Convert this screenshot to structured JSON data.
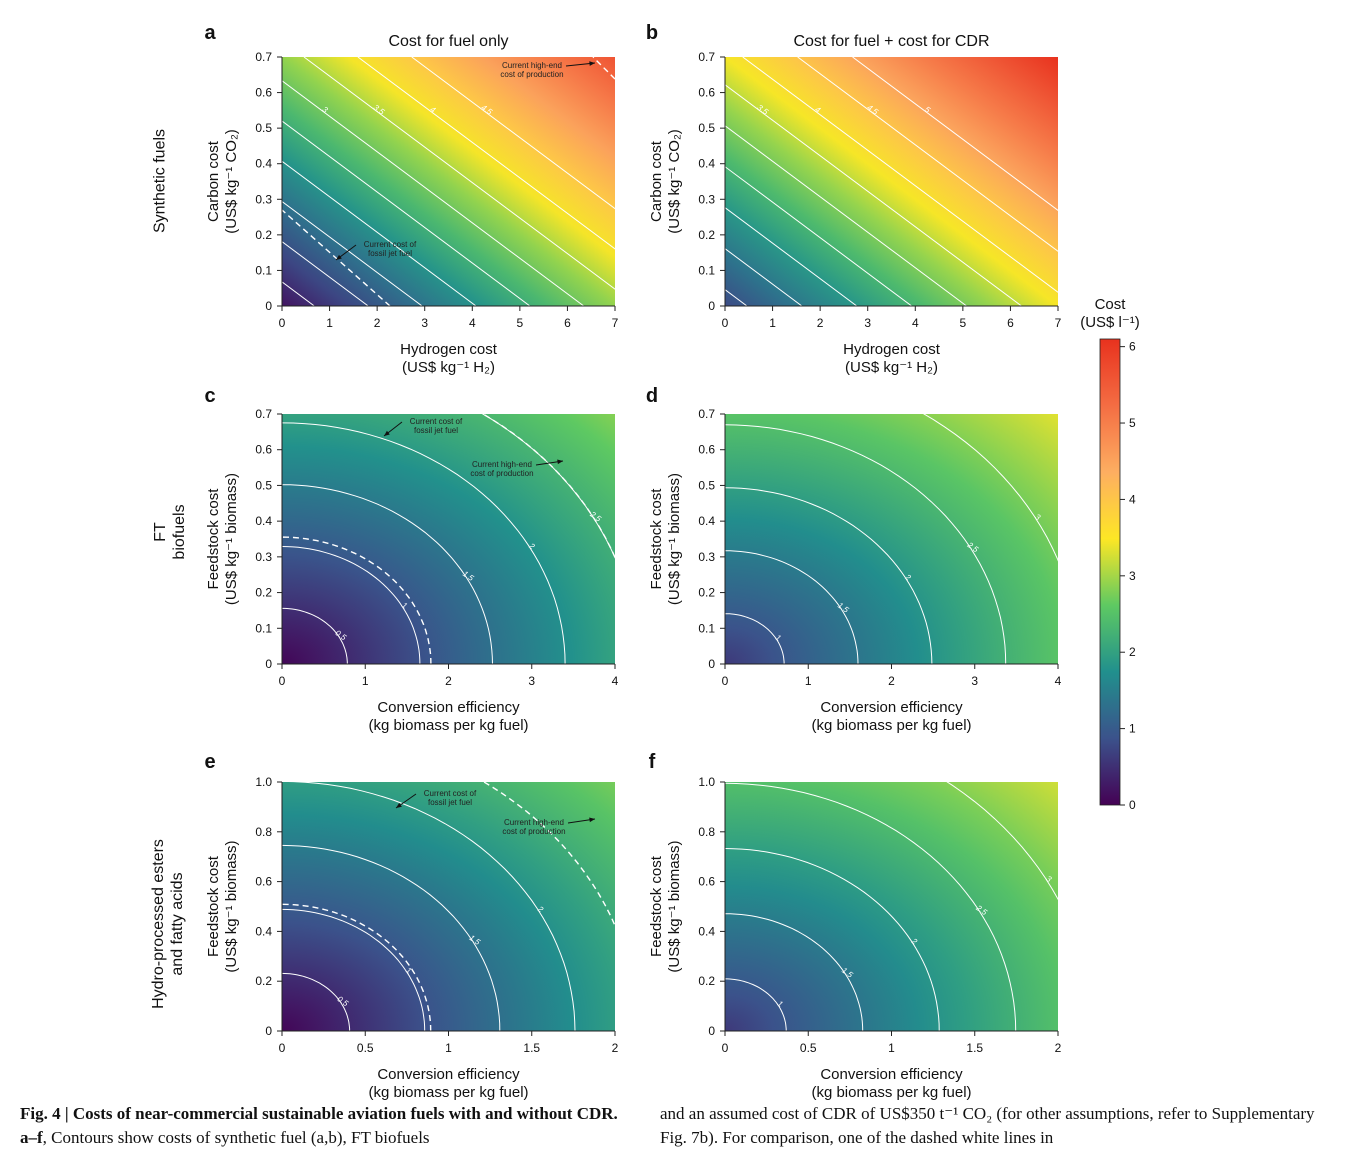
{
  "figure": {
    "row_labels": [
      [
        "Synthetic fuels"
      ],
      [
        "FT",
        "biofuels"
      ],
      [
        "Hydro-processed esters",
        "and fatty acids"
      ]
    ],
    "colorbar": {
      "title": "Cost",
      "unit": "(US$ l⁻¹)",
      "ticks": [
        "0",
        "1",
        "2",
        "3",
        "4",
        "5",
        "6"
      ],
      "colors": [
        "#440154",
        "#3b528b",
        "#21908d",
        "#5ec962",
        "#fde725",
        "#fdae61",
        "#f46d43",
        "#e8321e"
      ]
    },
    "caption": {
      "left_bold": "Fig. 4 | Costs of near-commercial sustainable aviation fuels with and without CDR. a–f",
      "left_rest": ", Contours show costs of synthetic fuel (a,b), FT biofuels",
      "right": "and an assumed cost of CDR of US$350 t⁻¹ CO₂ (for other assumptions, refer to Supplementary Fig. 7b). For comparison, one of the dashed white lines in"
    }
  },
  "chart_data": [
    {
      "panel": "a",
      "type": "heatmap",
      "title": "Cost for fuel only",
      "xlabel": [
        "Hydrogen cost",
        "(US$ kg⁻¹ H₂)"
      ],
      "ylabel": [
        "Carbon cost",
        "(US$ kg⁻¹ CO₂)"
      ],
      "xlim": [
        0,
        7
      ],
      "ylim": [
        0,
        0.7
      ],
      "xticks": [
        "0",
        "1",
        "2",
        "3",
        "4",
        "5",
        "6",
        "7"
      ],
      "yticks": [
        "0",
        "0.1",
        "0.2",
        "0.3",
        "0.4",
        "0.5",
        "0.6",
        "0.7"
      ],
      "cost_range": [
        0.2,
        5.6
      ],
      "contour_levels": [
        "0.5",
        "1",
        "1.5",
        "2",
        "2.5",
        "3",
        "3.5",
        "4",
        "4.5"
      ],
      "annotations": [
        {
          "text": [
            "Current high-end",
            "cost of production"
          ]
        },
        {
          "text": [
            "Current cost of",
            "fossil jet fuel"
          ]
        }
      ]
    },
    {
      "panel": "b",
      "type": "heatmap",
      "title": "Cost for fuel + cost for CDR",
      "xlabel": [
        "Hydrogen cost",
        "(US$ kg⁻¹ H₂)"
      ],
      "ylabel": [
        "Carbon cost",
        "(US$ kg⁻¹ CO₂)"
      ],
      "xlim": [
        0,
        7
      ],
      "ylim": [
        0,
        0.7
      ],
      "xticks": [
        "0",
        "1",
        "2",
        "3",
        "4",
        "5",
        "6",
        "7"
      ],
      "yticks": [
        "0",
        "0.1",
        "0.2",
        "0.3",
        "0.4",
        "0.5",
        "0.6",
        "0.7"
      ],
      "cost_range": [
        0.8,
        6.1
      ],
      "contour_levels": [
        "1",
        "1.5",
        "2",
        "2.5",
        "3",
        "3.5",
        "4",
        "4.5",
        "5"
      ],
      "annotations": []
    },
    {
      "panel": "c",
      "type": "heatmap",
      "title": "",
      "xlabel": [
        "Conversion efficiency",
        "(kg biomass per kg fuel)"
      ],
      "ylabel": [
        "Feedstock cost",
        "(US$ kg⁻¹ biomass)"
      ],
      "xlim": [
        0,
        4
      ],
      "ylim": [
        0,
        0.7
      ],
      "xticks": [
        "0",
        "1",
        "2",
        "3",
        "4"
      ],
      "yticks": [
        "0",
        "0.1",
        "0.2",
        "0.3",
        "0.4",
        "0.5",
        "0.6",
        "0.7"
      ],
      "cost_range": [
        0.05,
        2.9
      ],
      "contour_levels": [
        "0.5",
        "1",
        "1.5",
        "2",
        "2.5"
      ],
      "annotations": [
        {
          "text": [
            "Current cost of",
            "fossil jet fuel"
          ]
        },
        {
          "text": [
            "Current high-end",
            "cost of production"
          ]
        }
      ]
    },
    {
      "panel": "d",
      "type": "heatmap",
      "title": "",
      "xlabel": [
        "Conversion efficiency",
        "(kg biomass per kg fuel)"
      ],
      "ylabel": [
        "Feedstock cost",
        "(US$ kg⁻¹ biomass)"
      ],
      "xlim": [
        0,
        4
      ],
      "ylim": [
        0,
        0.7
      ],
      "xticks": [
        "0",
        "1",
        "2",
        "3",
        "4"
      ],
      "yticks": [
        "0",
        "0.1",
        "0.2",
        "0.3",
        "0.4",
        "0.5",
        "0.6",
        "0.7"
      ],
      "cost_range": [
        0.6,
        3.4
      ],
      "contour_levels": [
        "1",
        "1.5",
        "2",
        "2.5",
        "3"
      ],
      "annotations": []
    },
    {
      "panel": "e",
      "type": "heatmap",
      "title": "",
      "xlabel": [
        "Conversion efficiency",
        "(kg biomass per kg fuel)"
      ],
      "ylabel": [
        "Feedstock cost",
        "(US$ kg⁻¹ biomass)"
      ],
      "xlim": [
        0,
        2
      ],
      "ylim": [
        0,
        1.0
      ],
      "xticks": [
        "0",
        "0.5",
        "1",
        "1.5",
        "2"
      ],
      "yticks": [
        "0",
        "0.2",
        "0.4",
        "0.6",
        "0.8",
        "1.0"
      ],
      "cost_range": [
        0.05,
        2.8
      ],
      "contour_levels": [
        "0.5",
        "1",
        "1.5",
        "2"
      ],
      "annotations": [
        {
          "text": [
            "Current cost of",
            "fossil jet fuel"
          ]
        },
        {
          "text": [
            "Current high-end",
            "cost of production"
          ]
        }
      ]
    },
    {
      "panel": "f",
      "type": "heatmap",
      "title": "",
      "xlabel": [
        "Conversion efficiency",
        "(kg biomass per kg fuel)"
      ],
      "ylabel": [
        "Feedstock cost",
        "(US$ kg⁻¹ biomass)"
      ],
      "xlim": [
        0,
        2
      ],
      "ylim": [
        0,
        1.0
      ],
      "xticks": [
        "0",
        "0.5",
        "1",
        "1.5",
        "2"
      ],
      "yticks": [
        "0",
        "0.2",
        "0.4",
        "0.6",
        "0.8",
        "1.0"
      ],
      "cost_range": [
        0.6,
        3.3
      ],
      "contour_levels": [
        "1",
        "1.5",
        "2",
        "2.5",
        "3"
      ],
      "annotations": []
    }
  ]
}
